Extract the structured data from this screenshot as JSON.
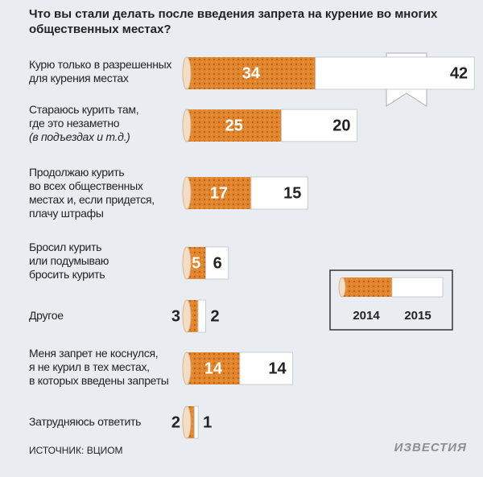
{
  "chart_data": {
    "type": "bar",
    "title": "Что вы стали делать после введения запрета на курение во многих общественных местах?",
    "categories": [
      "Курю только в разрешенных\nдля курения местах",
      "Стараюсь курить там,\nгде это незаметно",
      "Продолжаю курить\nво всех общественных\nместах и, если придется,\nплачу штрафы",
      "Бросил курить\nили подумываю\nбросить курить",
      "Другое",
      "Меня запрет не коснулся,\nя не курил в тех местах,\nв которых введены запреты",
      "Затрудняюсь ответить"
    ],
    "category_notes": [
      null,
      "(в подъездах и т.д.)",
      null,
      null,
      null,
      null,
      null
    ],
    "series": [
      {
        "name": "2014",
        "color": "#e0852c",
        "values": [
          34,
          25,
          17,
          5,
          3,
          14,
          2
        ]
      },
      {
        "name": "2015",
        "color": "#ffffff",
        "values": [
          42,
          20,
          15,
          6,
          2,
          14,
          1
        ]
      }
    ],
    "unit": "%",
    "source": "ИСТОЧНИК: ВЦИОМ",
    "logo": "ИЗВЕСТИЯ"
  }
}
